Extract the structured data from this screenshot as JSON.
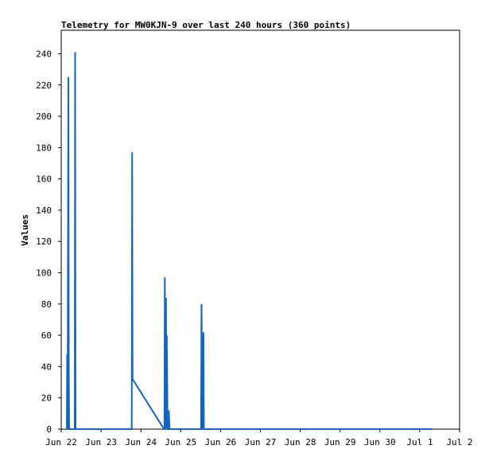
{
  "chart_data": {
    "type": "line",
    "title": "Telemetry for MW0KJN-9 over last 240 hours (360 points)",
    "xlabel": "",
    "ylabel": "Values",
    "ylim": [
      0,
      255
    ],
    "xlim": [
      "Jun 22",
      "Jul 2"
    ],
    "yticks": [
      0,
      20,
      40,
      60,
      80,
      100,
      120,
      140,
      160,
      180,
      200,
      220,
      240
    ],
    "xticks": [
      "Jun 22",
      "Jun 23",
      "Jun 24",
      "Jun 25",
      "Jun 26",
      "Jun 27",
      "Jun 28",
      "Jun 29",
      "Jun 30",
      "Jul 1",
      "Jul 2"
    ],
    "grid": false,
    "legend": "none",
    "colors": {
      "series_blue": "#1565c0",
      "series_red": "#e00000",
      "series_black": "#000000"
    },
    "series": [
      {
        "x": [
          0.14,
          0.15,
          0.16,
          0.18,
          0.19,
          0.2,
          0.34,
          0.35,
          0.36,
          1.77,
          1.78,
          1.79,
          2.58,
          2.59,
          2.6,
          2.62,
          2.63,
          2.64,
          2.65,
          2.67,
          2.69,
          2.7,
          2.72,
          3.51,
          3.52,
          3.55,
          3.57,
          3.58,
          3.6,
          3.64,
          3.66,
          3.68,
          3.7,
          3.73,
          3.75,
          3.77,
          3.79,
          3.8,
          3.82,
          3.84,
          3.85,
          3.87,
          3.89,
          3.9,
          4.32,
          4.33,
          4.34,
          4.35,
          4.36,
          4.38,
          4.39,
          4.4,
          4.41,
          4.42,
          4.44,
          4.46,
          4.47,
          4.48,
          4.51,
          4.52,
          4.53,
          4.54,
          4.55,
          4.57,
          4.58,
          4.59,
          4.61,
          4.62,
          5.69,
          5.7,
          5.71,
          5.72,
          5.73,
          5.74,
          5.88,
          5.89,
          5.9,
          5.91,
          5.92,
          6.24,
          6.25,
          6.26,
          6.27,
          6.28,
          6.3,
          6.31,
          6.33,
          6.45,
          6.46,
          6.47,
          6.48,
          6.5,
          6.51,
          6.53,
          6.56,
          6.57,
          6.58,
          6.59,
          6.61,
          6.62,
          7.47,
          7.48,
          7.49,
          7.5,
          7.51,
          7.52,
          7.64,
          7.65,
          7.66,
          7.67,
          7.68,
          8.54,
          8.55,
          8.56,
          8.58,
          8.59,
          8.6,
          8.61,
          8.75,
          8.76,
          8.77,
          8.78,
          8.79,
          8.8,
          8.82,
          8.95,
          8.96,
          8.97,
          9.0,
          9.03,
          9.06,
          9.08,
          9.1,
          9.15,
          9.18,
          9.22,
          9.25,
          9.28,
          9.3,
          9.31,
          9.32
        ],
        "y": [
          0,
          48,
          0,
          225,
          40,
          0,
          0,
          241,
          0,
          0,
          177,
          32,
          0,
          0,
          97,
          0,
          84,
          0,
          60,
          0,
          0,
          12,
          0,
          0,
          80,
          0,
          62,
          0,
          0,
          0,
          0,
          0,
          0,
          0,
          0,
          0,
          0,
          0,
          0,
          0,
          0,
          0,
          0,
          0,
          0,
          0,
          0,
          0,
          0,
          0,
          0,
          0,
          0,
          0,
          0,
          0,
          0,
          0,
          0,
          0,
          0,
          0,
          0,
          0,
          0,
          0,
          0,
          0,
          0,
          0,
          0,
          0,
          0,
          0,
          0,
          0,
          0,
          0,
          0,
          0,
          0,
          0,
          0,
          0,
          0,
          0,
          0,
          0,
          0,
          0,
          0,
          0,
          0,
          0,
          0,
          0,
          0,
          0,
          0,
          0,
          0,
          0,
          0,
          0,
          0,
          0,
          0,
          0,
          0,
          0,
          0,
          0,
          0,
          0,
          0,
          0,
          0,
          0,
          0,
          0,
          0,
          0,
          0,
          0,
          0,
          0,
          0,
          0,
          0,
          0,
          0,
          0,
          0,
          0,
          0,
          0,
          0,
          0,
          0,
          0,
          0
        ]
      }
    ]
  }
}
